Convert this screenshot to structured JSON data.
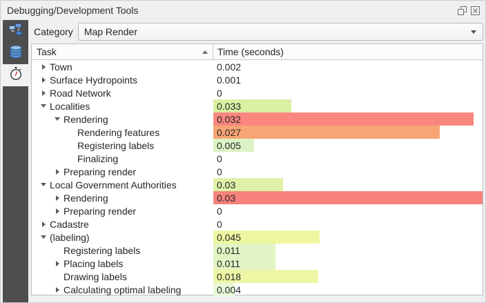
{
  "window": {
    "title": "Debugging/Development Tools"
  },
  "sidebar": {
    "tabs": [
      {
        "id": "query-logger",
        "icon": "network-nodes-icon",
        "selected": false
      },
      {
        "id": "database",
        "icon": "database-icon",
        "selected": false
      },
      {
        "id": "profiler",
        "icon": "stopwatch-icon",
        "selected": true
      }
    ]
  },
  "toolbar": {
    "category_label": "Category",
    "category_value": "Map Render"
  },
  "table": {
    "columns": [
      {
        "label": "Task",
        "sort": "ascending"
      },
      {
        "label": "Time (seconds)",
        "sort": null
      }
    ],
    "rows": [
      {
        "indent": 0,
        "expander": "collapsed",
        "label": "Town",
        "time": "0.002",
        "bar_pct": 0,
        "bar_color": null
      },
      {
        "indent": 0,
        "expander": "collapsed",
        "label": "Surface Hydropoints",
        "time": "0.001",
        "bar_pct": 0,
        "bar_color": null
      },
      {
        "indent": 0,
        "expander": "collapsed",
        "label": "Road Network",
        "time": "0",
        "bar_pct": 0,
        "bar_color": null
      },
      {
        "indent": 0,
        "expander": "expanded",
        "label": "Localities",
        "time": "0.033",
        "bar_pct": 29,
        "bar_color": "#dbf0a2"
      },
      {
        "indent": 1,
        "expander": "expanded",
        "label": "Rendering",
        "time": "0.032",
        "bar_pct": 96.7,
        "bar_color": "#f9867f"
      },
      {
        "indent": 2,
        "expander": null,
        "label": "Rendering features",
        "time": "0.027",
        "bar_pct": 84,
        "bar_color": "#f7a574"
      },
      {
        "indent": 2,
        "expander": null,
        "label": "Registering labels",
        "time": "0.005",
        "bar_pct": 15,
        "bar_color": "#ddf3c5"
      },
      {
        "indent": 2,
        "expander": null,
        "label": "Finalizing",
        "time": "0",
        "bar_pct": 0,
        "bar_color": null
      },
      {
        "indent": 1,
        "expander": "collapsed",
        "label": "Preparing render",
        "time": "0",
        "bar_pct": 0,
        "bar_color": null
      },
      {
        "indent": 0,
        "expander": "expanded",
        "label": "Local Government Authorities",
        "time": "0.03",
        "bar_pct": 26,
        "bar_color": "#def1a6"
      },
      {
        "indent": 1,
        "expander": "collapsed",
        "label": "Rendering",
        "time": "0.03",
        "bar_pct": 100,
        "bar_color": "#f8827b"
      },
      {
        "indent": 1,
        "expander": "collapsed",
        "label": "Preparing render",
        "time": "0",
        "bar_pct": 0,
        "bar_color": null
      },
      {
        "indent": 0,
        "expander": "collapsed",
        "label": "Cadastre",
        "time": "0",
        "bar_pct": 0,
        "bar_color": null
      },
      {
        "indent": 0,
        "expander": "expanded",
        "label": "(labeling)",
        "time": "0.045",
        "bar_pct": 39.5,
        "bar_color": "#eff6a0"
      },
      {
        "indent": 1,
        "expander": null,
        "label": "Registering labels",
        "time": "0.011",
        "bar_pct": 23,
        "bar_color": "#e2f4c3"
      },
      {
        "indent": 1,
        "expander": "collapsed",
        "label": "Placing labels",
        "time": "0.011",
        "bar_pct": 23,
        "bar_color": "#e2f4c3"
      },
      {
        "indent": 1,
        "expander": null,
        "label": "Drawing labels",
        "time": "0.018",
        "bar_pct": 39,
        "bar_color": "#edf6a4"
      },
      {
        "indent": 1,
        "expander": "collapsed",
        "label": "Calculating optimal labeling",
        "time": "0.004",
        "bar_pct": 8,
        "bar_color": "#e8f8d9"
      }
    ]
  }
}
